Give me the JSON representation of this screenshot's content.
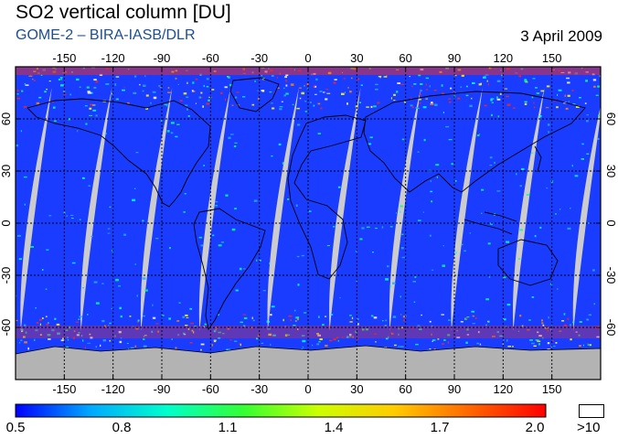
{
  "header": {
    "title": "SO2 vertical column [DU]",
    "subtitle": "GOME-2  –  BIRA-IASB/DLR",
    "date": "3 April 2009"
  },
  "map": {
    "lon_ticks": [
      "-150",
      "-120",
      "-90",
      "-60",
      "-30",
      "0",
      "30",
      "60",
      "90",
      "120",
      "150"
    ],
    "lat_ticks": [
      "60",
      "30",
      "0",
      "-30",
      "-60"
    ],
    "colors": {
      "ocean": "#1a3cff",
      "land_outline": "#000000",
      "no_data": "#cccccc",
      "antarctica": "#b3b3b3"
    }
  },
  "colorbar": {
    "labels": [
      "0.5",
      "0.8",
      "1.1",
      "1.4",
      "1.7",
      "2.0"
    ],
    "saturation_label": ">10",
    "stops": [
      "#0000ff",
      "#00aaff",
      "#00ffcc",
      "#33ff33",
      "#ccff00",
      "#ffcc00",
      "#ff6600",
      "#ff0000"
    ]
  }
}
